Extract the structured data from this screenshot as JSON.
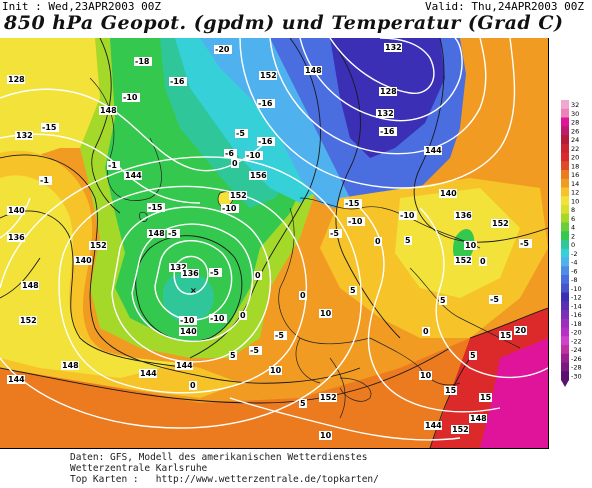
{
  "header": {
    "init_label": "Init : Wed,23APR2003 00Z",
    "valid_label": "Valid: Thu,24APR2003 00Z",
    "title": "850 hPa Geopot. (gpdm) und Temperatur (Grad C)"
  },
  "colors": {
    "deep_purple": "#3a2fb5",
    "blue": "#4a6ee0",
    "sky": "#4fb2ee",
    "cyan": "#36d0d8",
    "teal": "#2fc79a",
    "green": "#34c94e",
    "lime": "#a4d92a",
    "yellow": "#f2e23a",
    "gold": "#f6c428",
    "orange": "#f29b22",
    "dark_orange": "#ec7a1f",
    "red": "#dc2a2a",
    "magenta": "#e0149a"
  },
  "temperature_labels": [
    {
      "t": "-20"
    },
    {
      "t": "-18"
    },
    {
      "t": "-16"
    },
    {
      "t": "-10"
    },
    {
      "t": "-16"
    },
    {
      "t": "-15"
    },
    {
      "t": "-5"
    },
    {
      "t": "-6"
    },
    {
      "t": "0"
    },
    {
      "t": "-10"
    },
    {
      "t": "-1"
    },
    {
      "t": "-1"
    },
    {
      "t": "-16"
    },
    {
      "t": "-16"
    },
    {
      "t": "-15"
    },
    {
      "t": "-10"
    },
    {
      "t": "-5"
    },
    {
      "t": "-5"
    },
    {
      "t": "-10"
    },
    {
      "t": "-15"
    },
    {
      "t": "0"
    },
    {
      "t": "-5"
    },
    {
      "t": "-5"
    },
    {
      "t": "0"
    },
    {
      "t": "0"
    },
    {
      "t": "5"
    },
    {
      "t": "0"
    },
    {
      "t": "10"
    },
    {
      "t": "0"
    },
    {
      "t": "5"
    },
    {
      "t": "-5"
    },
    {
      "t": "0"
    },
    {
      "t": "-10"
    },
    {
      "t": "15"
    },
    {
      "t": "5"
    },
    {
      "t": "10"
    },
    {
      "t": "10"
    },
    {
      "t": "5"
    },
    {
      "t": "5"
    },
    {
      "t": "10"
    },
    {
      "t": "15"
    },
    {
      "t": "20"
    },
    {
      "t": "15"
    },
    {
      "t": "5"
    },
    {
      "t": "-5"
    },
    {
      "t": "0"
    },
    {
      "t": "10"
    },
    {
      "t": "-10"
    },
    {
      "t": "-10"
    },
    {
      "t": "-5"
    }
  ],
  "geopotential_labels": [
    {
      "t": "132"
    },
    {
      "t": "128"
    },
    {
      "t": "132"
    },
    {
      "t": "132"
    },
    {
      "t": "136"
    },
    {
      "t": "140"
    },
    {
      "t": "144"
    },
    {
      "t": "148"
    },
    {
      "t": "152"
    },
    {
      "t": "156"
    },
    {
      "t": "152"
    },
    {
      "t": "148"
    },
    {
      "t": "144"
    },
    {
      "t": "140"
    },
    {
      "t": "136"
    },
    {
      "t": "132"
    },
    {
      "t": "128"
    },
    {
      "t": "152"
    },
    {
      "t": "148"
    },
    {
      "t": "144"
    },
    {
      "t": "140"
    },
    {
      "t": "136"
    },
    {
      "t": "152"
    },
    {
      "t": "148"
    },
    {
      "t": "144"
    },
    {
      "t": "152"
    },
    {
      "t": "148"
    },
    {
      "t": "152"
    },
    {
      "t": "144"
    },
    {
      "t": "140"
    },
    {
      "t": "152"
    },
    {
      "t": "148"
    },
    {
      "t": "144"
    },
    {
      "t": "152"
    },
    {
      "t": "148"
    }
  ],
  "color_scale": {
    "labels": [
      "32",
      "30",
      "28",
      "26",
      "24",
      "22",
      "20",
      "18",
      "16",
      "14",
      "12",
      "10",
      "8",
      "6",
      "4",
      "2",
      "0",
      "-2",
      "-4",
      "-6",
      "-8",
      "-10",
      "-12",
      "-14",
      "-16",
      "-18",
      "-20",
      "-22",
      "-24",
      "-26",
      "-28",
      "-30"
    ],
    "colors": [
      "#f0a8d0",
      "#f080b8",
      "#e0149a",
      "#c01a6e",
      "#b51a3a",
      "#cc2430",
      "#dc2a2a",
      "#e14a26",
      "#ec7a1f",
      "#f29b22",
      "#f6c428",
      "#f2e23a",
      "#d8e02c",
      "#a4d92a",
      "#6ccd3c",
      "#34c94e",
      "#2fc79a",
      "#36d0d8",
      "#4fb2ee",
      "#4a8ee8",
      "#4a6ee0",
      "#4754cc",
      "#3a2fb5",
      "#5a2fb5",
      "#7a2fb5",
      "#9a2fc0",
      "#b82fc8",
      "#d040d0",
      "#c030a0",
      "#9a2090",
      "#7a1a80",
      "#5a1070"
    ]
  },
  "footer": {
    "line1": "Daten: GFS, Modell des amerikanischen Wetterdienstes",
    "line2": "Wetterzentrale Karlsruhe",
    "line3": "Top Karten :   http://www.wetterzentrale.de/topkarten/"
  }
}
